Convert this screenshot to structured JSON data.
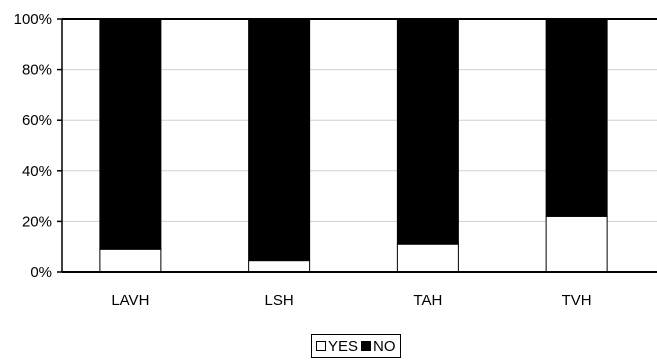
{
  "chart_data": {
    "type": "bar",
    "stacked": true,
    "percent": true,
    "categories": [
      "LAVH",
      "LSH",
      "TAH",
      "TVH"
    ],
    "series": [
      {
        "name": "YES",
        "values": [
          9,
          4.5,
          11,
          22
        ],
        "color": "#ffffff"
      },
      {
        "name": "NO",
        "values": [
          91,
          95.5,
          89,
          78
        ],
        "color": "#000000"
      }
    ],
    "ylim": [
      0,
      100
    ],
    "yticks": [
      "0%",
      "20%",
      "40%",
      "60%",
      "80%",
      "100%"
    ],
    "grid": true,
    "legend_position": "bottom"
  }
}
